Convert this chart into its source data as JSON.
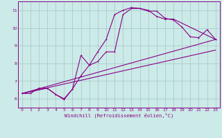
{
  "background_color": "#cceae7",
  "line_color": "#880088",
  "grid_color": "#aacccc",
  "xlabel": "Windchill (Refroidissement éolien,°C)",
  "yticks": [
    6,
    7,
    8,
    9,
    10,
    11
  ],
  "xticks": [
    0,
    1,
    2,
    3,
    4,
    5,
    6,
    7,
    8,
    9,
    10,
    11,
    12,
    13,
    14,
    15,
    16,
    17,
    18,
    19,
    20,
    21,
    22,
    23
  ],
  "xlim": [
    -0.5,
    23.5
  ],
  "ylim": [
    5.5,
    11.5
  ],
  "series1_x": [
    0,
    1,
    2,
    3,
    4,
    5,
    6,
    7,
    8,
    9,
    10,
    11,
    12,
    13,
    14,
    15,
    16,
    17,
    18,
    19,
    20,
    21,
    22,
    23
  ],
  "series1_y": [
    6.3,
    6.3,
    6.6,
    6.6,
    6.25,
    5.95,
    6.55,
    8.45,
    7.9,
    8.65,
    9.35,
    10.75,
    11.0,
    11.15,
    11.1,
    10.95,
    10.95,
    10.55,
    10.45,
    10.05,
    9.5,
    9.45,
    9.9,
    9.35
  ],
  "series2_x": [
    0,
    3,
    4,
    5,
    6,
    7,
    8,
    9,
    10,
    11,
    12,
    13,
    14,
    15,
    16,
    17,
    18,
    23
  ],
  "series2_y": [
    6.3,
    6.6,
    6.25,
    6.0,
    6.55,
    7.3,
    7.9,
    8.1,
    8.65,
    8.65,
    10.75,
    11.1,
    11.1,
    11.0,
    10.65,
    10.5,
    10.5,
    9.35
  ],
  "line3_x": [
    0,
    23
  ],
  "line3_y": [
    6.3,
    9.35
  ],
  "line4_x": [
    0,
    23
  ],
  "line4_y": [
    6.3,
    8.75
  ]
}
